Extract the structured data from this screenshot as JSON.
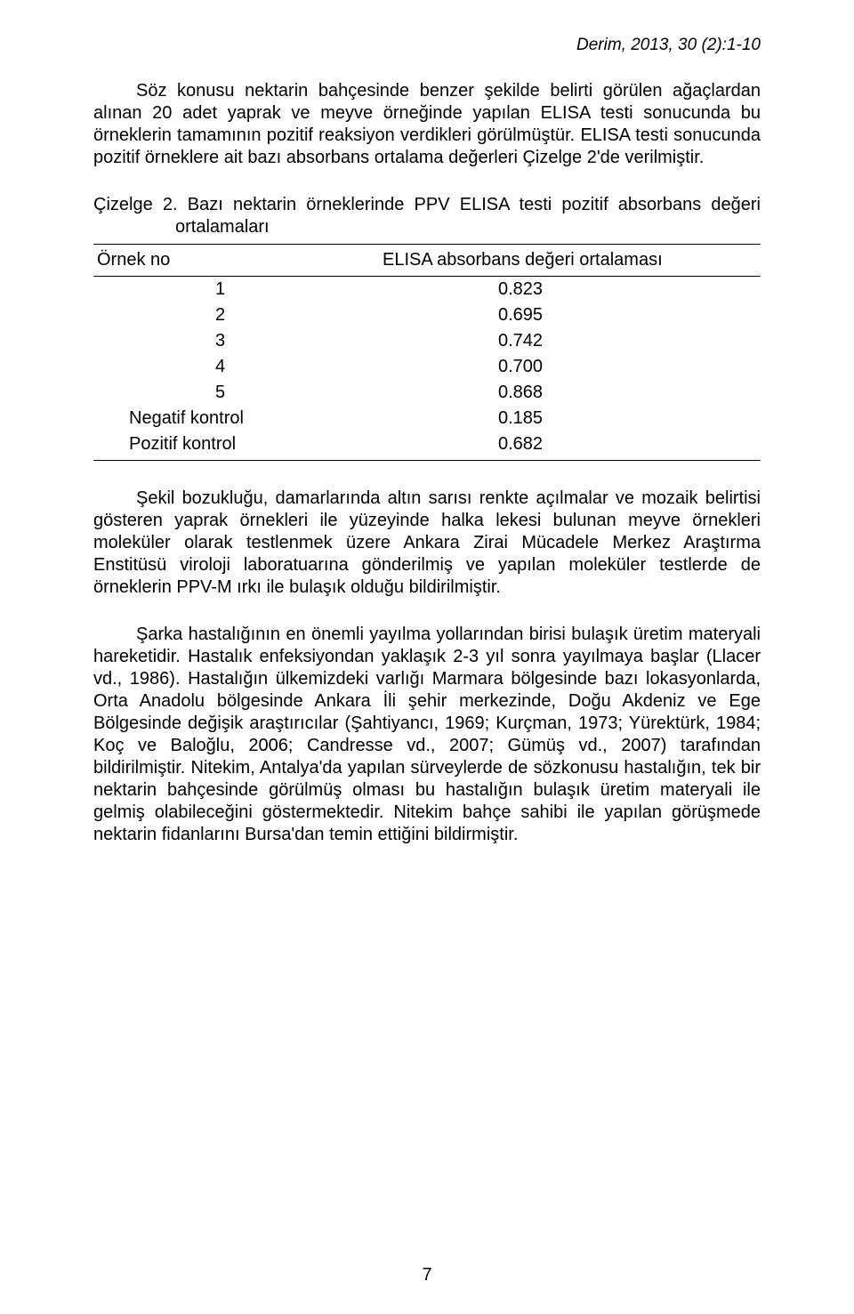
{
  "page": {
    "header_right": "Derim, 2013, 30 (2):1-10",
    "page_number": "7",
    "background_color": "#ffffff",
    "text_color": "#000000",
    "body_fontsize": 20,
    "header_fontsize": 19
  },
  "paragraphs": {
    "p1": "Söz konusu nektarin bahçesinde benzer şekilde belirti görülen ağaçlardan alınan 20 adet yaprak ve meyve örneğinde yapılan ELISA testi sonucunda bu örneklerin tamamının pozitif reaksiyon verdikleri görülmüştür. ELISA testi sonucunda pozitif örneklere ait bazı absorbans ortalama değerleri Çizelge 2'de verilmiştir.",
    "p2": "Şekil bozukluğu, damarlarında altın sarısı renkte açılmalar ve mozaik belirtisi gösteren yaprak örnekleri ile yüzeyinde halka lekesi bulunan meyve örnekleri moleküler olarak testlenmek üzere Ankara Zirai Mücadele Merkez Araştırma Enstitüsü viroloji laboratuarına gönderilmiş ve yapılan moleküler testlerde de örneklerin PPV-M ırkı ile bulaşık olduğu bildirilmiştir.",
    "p3": "Şarka hastalığının en önemli yayılma yollarından birisi bulaşık üretim materyali hareketidir. Hastalık enfeksiyondan yaklaşık 2-3 yıl sonra yayılmaya başlar (Llacer vd., 1986). Hastalığın ülkemizdeki varlığı Marmara bölgesinde bazı lokasyonlarda, Orta Anadolu bölgesinde Ankara İli şehir merkezinde, Doğu Akdeniz ve Ege Bölgesinde değişik araştırıcılar (Şahtiyancı, 1969; Kurçman, 1973; Yürektürk, 1984; Koç ve Baloğlu, 2006; Candresse vd., 2007; Gümüş vd., 2007) tarafından bildirilmiştir. Nitekim, Antalya'da yapılan sürveylerde de sözkonusu hastalığın, tek bir nektarin bahçesinde görülmüş olması bu hastalığın bulaşık üretim materyali ile gelmiş olabileceğini göstermektedir. Nitekim bahçe sahibi ile yapılan görüşmede nektarin fidanlarını Bursa'dan temin ettiğini bildirmiştir."
  },
  "table": {
    "type": "table",
    "caption": "Çizelge 2. Bazı nektarin örneklerinde PPV ELISA testi pozitif absorbans değeri ortalamaları",
    "columns": [
      "Örnek no",
      "ELISA absorbans değeri ortalaması"
    ],
    "rows": [
      {
        "label": "1",
        "value": "0.823",
        "centered": true
      },
      {
        "label": "2",
        "value": "0.695",
        "centered": true
      },
      {
        "label": "3",
        "value": "0.742",
        "centered": true
      },
      {
        "label": "4",
        "value": "0.700",
        "centered": true
      },
      {
        "label": "5",
        "value": "0.868",
        "centered": true
      },
      {
        "label": "Negatif kontrol",
        "value": "0.185",
        "centered": false
      },
      {
        "label": "Pozitif kontrol",
        "value": "0.682",
        "centered": false
      }
    ],
    "border_color": "#000000",
    "cell_fontsize": 20
  }
}
